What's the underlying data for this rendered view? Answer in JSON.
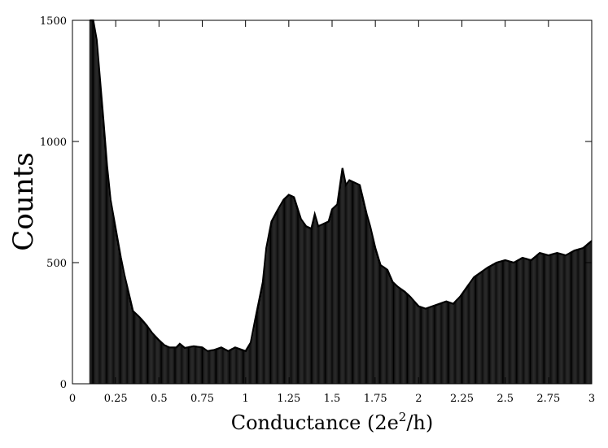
{
  "chart_data": {
    "type": "bar",
    "title": "",
    "xlabel": "Conductance (2e²/h)",
    "xlabel_parts": {
      "main": "Conductance (2e",
      "sup": "2",
      "tail": "/h)"
    },
    "ylabel": "Counts",
    "xlim": [
      0,
      3
    ],
    "ylim": [
      0,
      1500
    ],
    "grid": false,
    "legend": "none",
    "bar_color": "#000000",
    "xticks": [
      0,
      0.25,
      0.5,
      0.75,
      1,
      1.25,
      1.5,
      1.75,
      2,
      2.25,
      2.5,
      2.75,
      3
    ],
    "xtick_labels": [
      "0",
      "0.25",
      "0.5",
      "0.75",
      "1",
      "1.25",
      "1.5",
      "1.75",
      "2",
      "2.25",
      "2.5",
      "2.75",
      "3"
    ],
    "yticks": [
      0,
      500,
      1000,
      1500
    ],
    "ytick_labels": [
      "0",
      "500",
      "1000",
      "1500"
    ],
    "series": [
      {
        "points": [
          [
            0.1,
            1500
          ],
          [
            0.12,
            1500
          ],
          [
            0.14,
            1420
          ],
          [
            0.16,
            1250
          ],
          [
            0.18,
            1080
          ],
          [
            0.2,
            900
          ],
          [
            0.22,
            760
          ],
          [
            0.24,
            680
          ],
          [
            0.26,
            600
          ],
          [
            0.28,
            520
          ],
          [
            0.3,
            450
          ],
          [
            0.32,
            390
          ],
          [
            0.35,
            300
          ],
          [
            0.38,
            280
          ],
          [
            0.4,
            265
          ],
          [
            0.43,
            240
          ],
          [
            0.46,
            210
          ],
          [
            0.5,
            180
          ],
          [
            0.53,
            160
          ],
          [
            0.56,
            150
          ],
          [
            0.6,
            150
          ],
          [
            0.62,
            165
          ],
          [
            0.65,
            148
          ],
          [
            0.7,
            155
          ],
          [
            0.75,
            150
          ],
          [
            0.78,
            135
          ],
          [
            0.82,
            140
          ],
          [
            0.86,
            150
          ],
          [
            0.9,
            135
          ],
          [
            0.94,
            150
          ],
          [
            0.98,
            140
          ],
          [
            1.0,
            135
          ],
          [
            1.03,
            170
          ],
          [
            1.06,
            280
          ],
          [
            1.1,
            420
          ],
          [
            1.12,
            560
          ],
          [
            1.15,
            670
          ],
          [
            1.18,
            710
          ],
          [
            1.22,
            760
          ],
          [
            1.25,
            780
          ],
          [
            1.28,
            770
          ],
          [
            1.32,
            680
          ],
          [
            1.35,
            650
          ],
          [
            1.38,
            640
          ],
          [
            1.4,
            700
          ],
          [
            1.42,
            650
          ],
          [
            1.45,
            660
          ],
          [
            1.48,
            670
          ],
          [
            1.5,
            720
          ],
          [
            1.53,
            740
          ],
          [
            1.56,
            890
          ],
          [
            1.58,
            820
          ],
          [
            1.6,
            840
          ],
          [
            1.63,
            830
          ],
          [
            1.66,
            820
          ],
          [
            1.68,
            760
          ],
          [
            1.7,
            700
          ],
          [
            1.72,
            650
          ],
          [
            1.75,
            560
          ],
          [
            1.78,
            490
          ],
          [
            1.82,
            470
          ],
          [
            1.85,
            420
          ],
          [
            1.88,
            400
          ],
          [
            1.92,
            380
          ],
          [
            1.95,
            360
          ],
          [
            2.0,
            320
          ],
          [
            2.04,
            310
          ],
          [
            2.08,
            320
          ],
          [
            2.12,
            330
          ],
          [
            2.16,
            340
          ],
          [
            2.2,
            330
          ],
          [
            2.24,
            360
          ],
          [
            2.28,
            400
          ],
          [
            2.32,
            440
          ],
          [
            2.36,
            460
          ],
          [
            2.4,
            480
          ],
          [
            2.45,
            500
          ],
          [
            2.5,
            510
          ],
          [
            2.55,
            500
          ],
          [
            2.6,
            520
          ],
          [
            2.65,
            510
          ],
          [
            2.7,
            540
          ],
          [
            2.75,
            530
          ],
          [
            2.8,
            540
          ],
          [
            2.85,
            530
          ],
          [
            2.9,
            550
          ],
          [
            2.95,
            560
          ],
          [
            3.0,
            590
          ]
        ]
      }
    ]
  }
}
